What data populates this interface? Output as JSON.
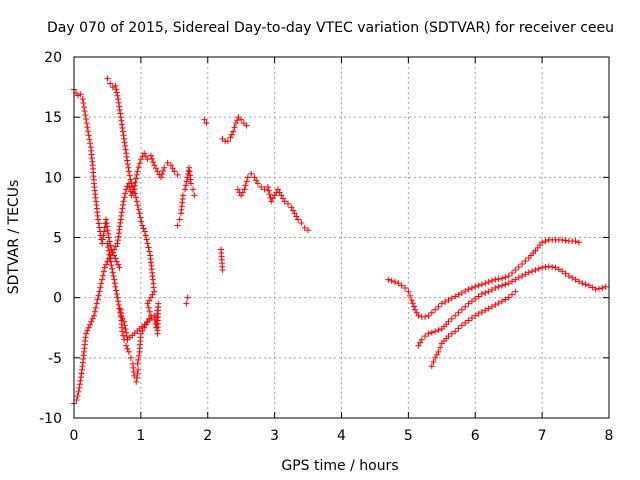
{
  "chart_data": {
    "type": "scatter",
    "title": "Day 070 of 2015, Sidereal Day-to-day VTEC variation (SDTVAR) for receiver ceeu",
    "xlabel": "GPS time / hours",
    "ylabel": "SDTVAR / TECUs",
    "xlim": [
      0,
      8
    ],
    "ylim": [
      -10,
      20
    ],
    "xticks": [
      "0",
      "1",
      "2",
      "3",
      "4",
      "5",
      "6",
      "7",
      "8"
    ],
    "yticks": [
      "-10",
      "-5",
      "0",
      "5",
      "10",
      "15",
      "20"
    ],
    "grid": true,
    "marker": "+",
    "color": "#ff0000",
    "series": [
      {
        "name": "seg-a",
        "points": [
          [
            0.0,
            17.3
          ],
          [
            0.03,
            17.0
          ],
          [
            0.06,
            16.8
          ],
          [
            0.1,
            16.9
          ],
          [
            0.13,
            16.5
          ],
          [
            0.16,
            15.5
          ],
          [
            0.19,
            14.5
          ],
          [
            0.22,
            13.5
          ],
          [
            0.25,
            12.5
          ],
          [
            0.28,
            11.0
          ],
          [
            0.3,
            9.5
          ],
          [
            0.33,
            8.0
          ],
          [
            0.36,
            6.5
          ],
          [
            0.39,
            5.5
          ],
          [
            0.42,
            4.5
          ],
          [
            0.45,
            5.5
          ],
          [
            0.48,
            6.5
          ],
          [
            0.52,
            5.0
          ],
          [
            0.56,
            4.0
          ],
          [
            0.6,
            3.5
          ],
          [
            0.64,
            3.0
          ],
          [
            0.68,
            2.5
          ],
          [
            0.7,
            -1.0
          ],
          [
            0.72,
            -2.8
          ],
          [
            0.75,
            -3.5
          ],
          [
            0.78,
            -4.0
          ],
          [
            0.82,
            -4.5
          ],
          [
            0.85,
            -5.0
          ],
          [
            0.88,
            -5.5
          ],
          [
            0.9,
            -6.5
          ],
          [
            0.93,
            -7.0
          ],
          [
            0.96,
            -6.0
          ]
        ]
      },
      {
        "name": "seg-b",
        "points": [
          [
            0.0,
            -8.8
          ],
          [
            0.04,
            -8.5
          ],
          [
            0.08,
            -7.5
          ],
          [
            0.12,
            -6.0
          ],
          [
            0.15,
            -4.5
          ],
          [
            0.18,
            -3.0
          ],
          [
            0.22,
            -2.5
          ],
          [
            0.26,
            -2.0
          ],
          [
            0.3,
            -1.5
          ],
          [
            0.34,
            -0.5
          ],
          [
            0.38,
            0.5
          ],
          [
            0.42,
            1.5
          ],
          [
            0.46,
            2.5
          ],
          [
            0.5,
            3.0
          ],
          [
            0.55,
            3.5
          ],
          [
            0.6,
            4.0
          ],
          [
            0.65,
            4.5
          ],
          [
            0.7,
            6.5
          ],
          [
            0.74,
            8.0
          ],
          [
            0.78,
            9.0
          ],
          [
            0.82,
            9.5
          ],
          [
            0.86,
            8.5
          ],
          [
            0.9,
            9.0
          ],
          [
            0.95,
            10.5
          ],
          [
            1.0,
            11.5
          ],
          [
            1.05,
            12.0
          ],
          [
            1.1,
            11.5
          ],
          [
            1.15,
            11.8
          ],
          [
            1.2,
            11.0
          ],
          [
            1.25,
            10.5
          ],
          [
            1.3,
            10.0
          ],
          [
            1.35,
            10.8
          ],
          [
            1.4,
            11.2
          ],
          [
            1.45,
            11.0
          ],
          [
            1.5,
            10.5
          ],
          [
            1.55,
            10.2
          ]
        ]
      },
      {
        "name": "seg-c",
        "points": [
          [
            0.5,
            18.2
          ],
          [
            0.54,
            17.8
          ],
          [
            0.58,
            17.5
          ],
          [
            0.62,
            17.6
          ],
          [
            0.66,
            16.5
          ],
          [
            0.7,
            15.0
          ],
          [
            0.74,
            13.5
          ],
          [
            0.78,
            12.0
          ],
          [
            0.82,
            10.5
          ],
          [
            0.86,
            9.5
          ],
          [
            0.9,
            9.0
          ],
          [
            0.94,
            8.0
          ],
          [
            0.98,
            7.0
          ],
          [
            1.02,
            6.0
          ],
          [
            1.06,
            5.5
          ],
          [
            1.1,
            4.5
          ],
          [
            1.14,
            3.5
          ],
          [
            1.18,
            1.5
          ],
          [
            1.2,
            0.5
          ],
          [
            1.1,
            -0.5
          ],
          [
            1.15,
            -1.5
          ],
          [
            1.05,
            -2.5
          ],
          [
            1.0,
            -3.0
          ],
          [
            0.98,
            -4.5
          ],
          [
            0.95,
            -5.5
          ]
        ]
      },
      {
        "name": "seg-d",
        "points": [
          [
            0.5,
            4.5
          ],
          [
            0.55,
            3.0
          ],
          [
            0.6,
            1.5
          ],
          [
            0.65,
            0.0
          ],
          [
            0.7,
            -1.5
          ],
          [
            0.75,
            -2.0
          ],
          [
            0.8,
            -3.5
          ],
          [
            1.2,
            -1.5
          ],
          [
            1.23,
            -2.5
          ],
          [
            1.26,
            -0.5
          ],
          [
            1.25,
            -3.0
          ]
        ]
      },
      {
        "name": "seg-e",
        "points": [
          [
            1.55,
            6.0
          ],
          [
            1.58,
            6.5
          ],
          [
            1.6,
            7.0
          ],
          [
            1.63,
            8.5
          ],
          [
            1.66,
            9.0
          ],
          [
            1.7,
            10.0
          ],
          [
            1.72,
            10.8
          ],
          [
            1.75,
            9.5
          ],
          [
            1.78,
            9.0
          ],
          [
            1.8,
            8.5
          ],
          [
            1.68,
            -0.5
          ],
          [
            1.7,
            0.0
          ],
          [
            1.95,
            14.8
          ],
          [
            1.98,
            14.5
          ],
          [
            2.2,
            4.0
          ],
          [
            2.22,
            2.3
          ]
        ]
      },
      {
        "name": "seg-f",
        "points": [
          [
            2.22,
            13.2
          ],
          [
            2.26,
            13.0
          ],
          [
            2.3,
            13.0
          ],
          [
            2.34,
            13.3
          ],
          [
            2.38,
            13.8
          ],
          [
            2.42,
            14.5
          ],
          [
            2.46,
            15.0
          ],
          [
            2.5,
            14.8
          ],
          [
            2.54,
            14.5
          ],
          [
            2.58,
            14.3
          ]
        ]
      },
      {
        "name": "seg-g",
        "points": [
          [
            2.45,
            9.0
          ],
          [
            2.5,
            8.5
          ],
          [
            2.55,
            9.0
          ],
          [
            2.6,
            10.0
          ],
          [
            2.65,
            10.3
          ],
          [
            2.7,
            10.0
          ],
          [
            2.75,
            9.5
          ],
          [
            2.8,
            9.2
          ],
          [
            2.85,
            9.0
          ],
          [
            2.9,
            9.2
          ],
          [
            2.95,
            8.0
          ],
          [
            3.0,
            8.5
          ],
          [
            3.05,
            9.0
          ],
          [
            3.1,
            8.5
          ],
          [
            3.15,
            8.0
          ],
          [
            3.2,
            7.8
          ],
          [
            3.25,
            7.5
          ],
          [
            3.3,
            7.0
          ],
          [
            3.35,
            6.5
          ],
          [
            3.4,
            6.2
          ],
          [
            3.45,
            5.8
          ],
          [
            3.5,
            5.6
          ]
        ]
      },
      {
        "name": "seg-h",
        "points": [
          [
            4.7,
            1.5
          ],
          [
            4.75,
            1.4
          ],
          [
            4.8,
            1.3
          ],
          [
            4.85,
            1.2
          ],
          [
            4.9,
            1.0
          ],
          [
            4.95,
            0.8
          ],
          [
            5.0,
            0.5
          ],
          [
            5.05,
            -0.2
          ],
          [
            5.1,
            -1.0
          ],
          [
            5.15,
            -1.5
          ],
          [
            5.2,
            -1.6
          ],
          [
            5.25,
            -1.6
          ],
          [
            5.3,
            -1.5
          ],
          [
            5.4,
            -1.0
          ],
          [
            5.5,
            -0.5
          ],
          [
            5.6,
            -0.2
          ],
          [
            5.7,
            0.1
          ],
          [
            5.8,
            0.4
          ],
          [
            5.9,
            0.7
          ],
          [
            6.0,
            0.9
          ],
          [
            6.1,
            1.1
          ],
          [
            6.2,
            1.3
          ],
          [
            6.3,
            1.5
          ],
          [
            6.4,
            1.6
          ],
          [
            6.5,
            1.8
          ],
          [
            6.6,
            2.3
          ],
          [
            6.7,
            2.8
          ],
          [
            6.8,
            3.3
          ],
          [
            6.9,
            3.9
          ],
          [
            7.0,
            4.6
          ],
          [
            7.1,
            4.8
          ],
          [
            7.2,
            4.8
          ],
          [
            7.3,
            4.8
          ],
          [
            7.4,
            4.7
          ],
          [
            7.5,
            4.7
          ],
          [
            7.55,
            4.6
          ]
        ]
      },
      {
        "name": "seg-i",
        "points": [
          [
            5.15,
            -4.0
          ],
          [
            5.2,
            -3.5
          ],
          [
            5.25,
            -3.2
          ],
          [
            5.3,
            -3.0
          ],
          [
            5.4,
            -2.8
          ],
          [
            5.5,
            -2.6
          ],
          [
            5.6,
            -2.0
          ],
          [
            5.7,
            -1.5
          ],
          [
            5.8,
            -1.0
          ],
          [
            5.9,
            -0.5
          ],
          [
            6.0,
            -0.1
          ],
          [
            6.1,
            0.3
          ],
          [
            6.2,
            0.5
          ],
          [
            6.3,
            0.8
          ],
          [
            6.4,
            1.0
          ],
          [
            6.5,
            1.2
          ],
          [
            6.6,
            1.5
          ],
          [
            6.7,
            1.8
          ],
          [
            6.8,
            2.1
          ],
          [
            6.9,
            2.3
          ],
          [
            7.0,
            2.5
          ],
          [
            7.1,
            2.6
          ],
          [
            7.2,
            2.5
          ],
          [
            7.3,
            2.2
          ],
          [
            7.4,
            1.8
          ],
          [
            7.5,
            1.5
          ],
          [
            7.6,
            1.2
          ],
          [
            7.7,
            1.0
          ],
          [
            7.8,
            0.7
          ],
          [
            7.9,
            0.8
          ],
          [
            7.95,
            0.9
          ]
        ]
      },
      {
        "name": "seg-j",
        "points": [
          [
            5.35,
            -5.7
          ],
          [
            5.4,
            -5.0
          ],
          [
            5.45,
            -4.5
          ],
          [
            5.5,
            -3.8
          ],
          [
            5.6,
            -3.2
          ],
          [
            5.7,
            -2.8
          ],
          [
            5.8,
            -2.3
          ],
          [
            5.9,
            -1.9
          ],
          [
            6.0,
            -1.5
          ],
          [
            6.1,
            -1.2
          ],
          [
            6.2,
            -0.9
          ],
          [
            6.3,
            -0.6
          ],
          [
            6.4,
            -0.3
          ],
          [
            6.5,
            0.0
          ],
          [
            6.6,
            0.5
          ]
        ]
      }
    ]
  }
}
